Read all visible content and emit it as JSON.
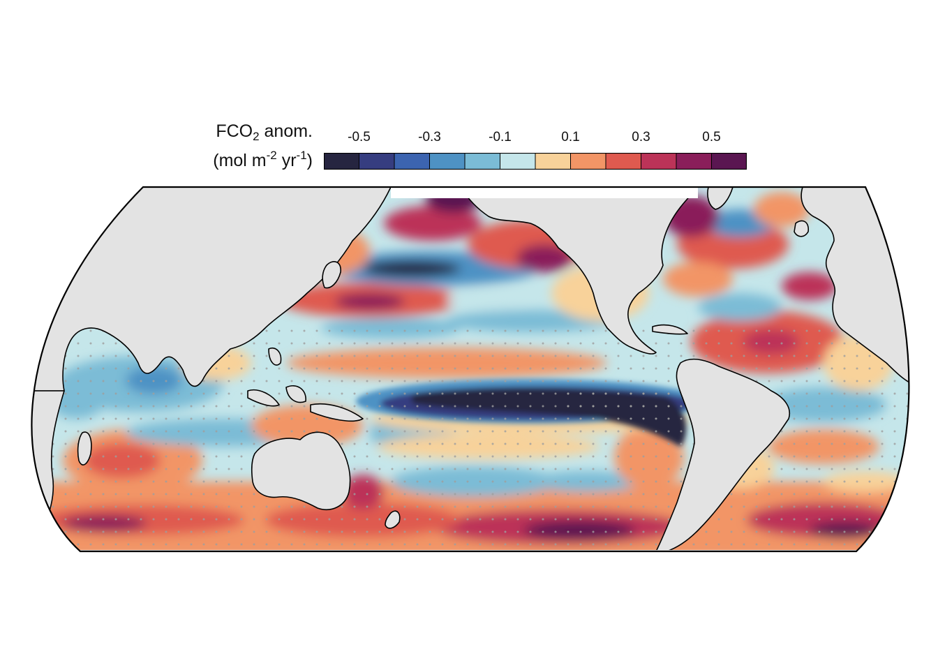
{
  "legend": {
    "title_main": "FCO",
    "title_main_sub": "2",
    "title_main_rest": " anom.",
    "units_open": "(mol m",
    "units_exp1": "-2",
    "units_mid": " yr",
    "units_exp2": "-1",
    "units_close": ")",
    "tick_labels": [
      "-0.5",
      "-0.3",
      "-0.1",
      "0.1",
      "0.3",
      "0.5"
    ],
    "bins": [
      {
        "color": "#262540"
      },
      {
        "color": "#363D80"
      },
      {
        "color": "#3C64B0"
      },
      {
        "color": "#4E92C4"
      },
      {
        "color": "#7BBCD6"
      },
      {
        "color": "#C5E6EA"
      },
      {
        "color": "#F8D29A"
      },
      {
        "color": "#F29566"
      },
      {
        "color": "#DF5A4F"
      },
      {
        "color": "#BC3358"
      },
      {
        "color": "#8A1E5A"
      },
      {
        "color": "#5A1651"
      }
    ]
  },
  "map": {
    "projection": "Robinson (Pacific-centered)",
    "land_color": "#E3E3E3",
    "coastline_color": "#000000",
    "stipple_color": "#9E9E9E",
    "ocean_missing_color": "#FFFFFF"
  }
}
